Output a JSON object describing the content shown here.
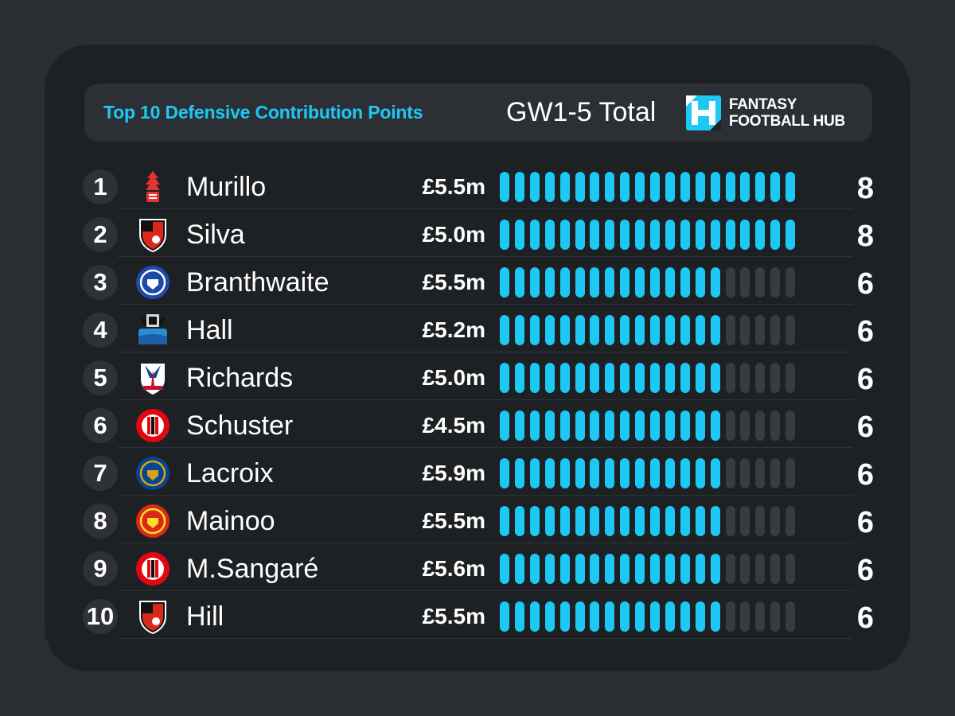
{
  "header": {
    "title": "Top 10 Defensive Contribution Points",
    "subtitle": "GW1-5 Total",
    "logo_line1": "FANTASY",
    "logo_line2": "FOOTBALL HUB"
  },
  "colors": {
    "accent": "#1ec8f5",
    "segment_off": "#383c40",
    "panel": "#1e2124",
    "background": "#2a2e32"
  },
  "segments_total": 20,
  "chart_data": {
    "type": "bar",
    "title": "Top 10 Defensive Contribution Points",
    "subtitle": "GW1-5 Total",
    "categories": [
      "Murillo",
      "Silva",
      "Branthwaite",
      "Hall",
      "Richards",
      "Schuster",
      "Lacroix",
      "Mainoo",
      "M.Sangaré",
      "Hill"
    ],
    "values": [
      8,
      8,
      6,
      6,
      6,
      6,
      6,
      6,
      6,
      6
    ],
    "xlim": [
      0,
      8
    ]
  },
  "rows": [
    {
      "rank": "1",
      "name": "Murillo",
      "price": "£5.5m",
      "points": "8",
      "value": 8,
      "crest_icon": "nottingham-forest-crest-icon",
      "crest_type": "forest",
      "crest_primary": "#e53233",
      "crest_secondary": "#ffffff"
    },
    {
      "rank": "2",
      "name": "Silva",
      "price": "£5.0m",
      "points": "8",
      "value": 8,
      "crest_icon": "bournemouth-crest-icon",
      "crest_type": "shield",
      "crest_primary": "#da291c",
      "crest_secondary": "#111111"
    },
    {
      "rank": "3",
      "name": "Branthwaite",
      "price": "£5.5m",
      "points": "6",
      "value": 6,
      "crest_icon": "everton-crest-icon",
      "crest_type": "round",
      "crest_primary": "#1d4aa8",
      "crest_secondary": "#ffffff"
    },
    {
      "rank": "4",
      "name": "Hall",
      "price": "£5.2m",
      "points": "6",
      "value": 6,
      "crest_icon": "newcastle-crest-icon",
      "crest_type": "magpies",
      "crest_primary": "#2a8dd4",
      "crest_secondary": "#111111"
    },
    {
      "rank": "5",
      "name": "Richards",
      "price": "£5.0m",
      "points": "6",
      "value": 6,
      "crest_icon": "crystal-palace-crest-icon",
      "crest_type": "eagle",
      "crest_primary": "#1b458f",
      "crest_secondary": "#c4122e"
    },
    {
      "rank": "6",
      "name": "Schuster",
      "price": "£4.5m",
      "points": "6",
      "value": 6,
      "crest_icon": "burnley-crest-icon",
      "crest_type": "round-stripes",
      "crest_primary": "#e30613",
      "crest_secondary": "#ffffff"
    },
    {
      "rank": "7",
      "name": "Lacroix",
      "price": "£5.9m",
      "points": "6",
      "value": 6,
      "crest_icon": "chelsea-crest-icon",
      "crest_type": "round",
      "crest_primary": "#034694",
      "crest_secondary": "#dba111"
    },
    {
      "rank": "8",
      "name": "Mainoo",
      "price": "£5.5m",
      "points": "6",
      "value": 6,
      "crest_icon": "manchester-united-crest-icon",
      "crest_type": "round",
      "crest_primary": "#da291c",
      "crest_secondary": "#fbe122"
    },
    {
      "rank": "9",
      "name": "M.Sangaré",
      "price": "£5.6m",
      "points": "6",
      "value": 6,
      "crest_icon": "brentford-crest-icon",
      "crest_type": "round-stripes",
      "crest_primary": "#e30613",
      "crest_secondary": "#ffffff"
    },
    {
      "rank": "10",
      "name": "Hill",
      "price": "£5.5m",
      "points": "6",
      "value": 6,
      "crest_icon": "bournemouth-crest-icon",
      "crest_type": "shield",
      "crest_primary": "#da291c",
      "crest_secondary": "#111111"
    }
  ]
}
